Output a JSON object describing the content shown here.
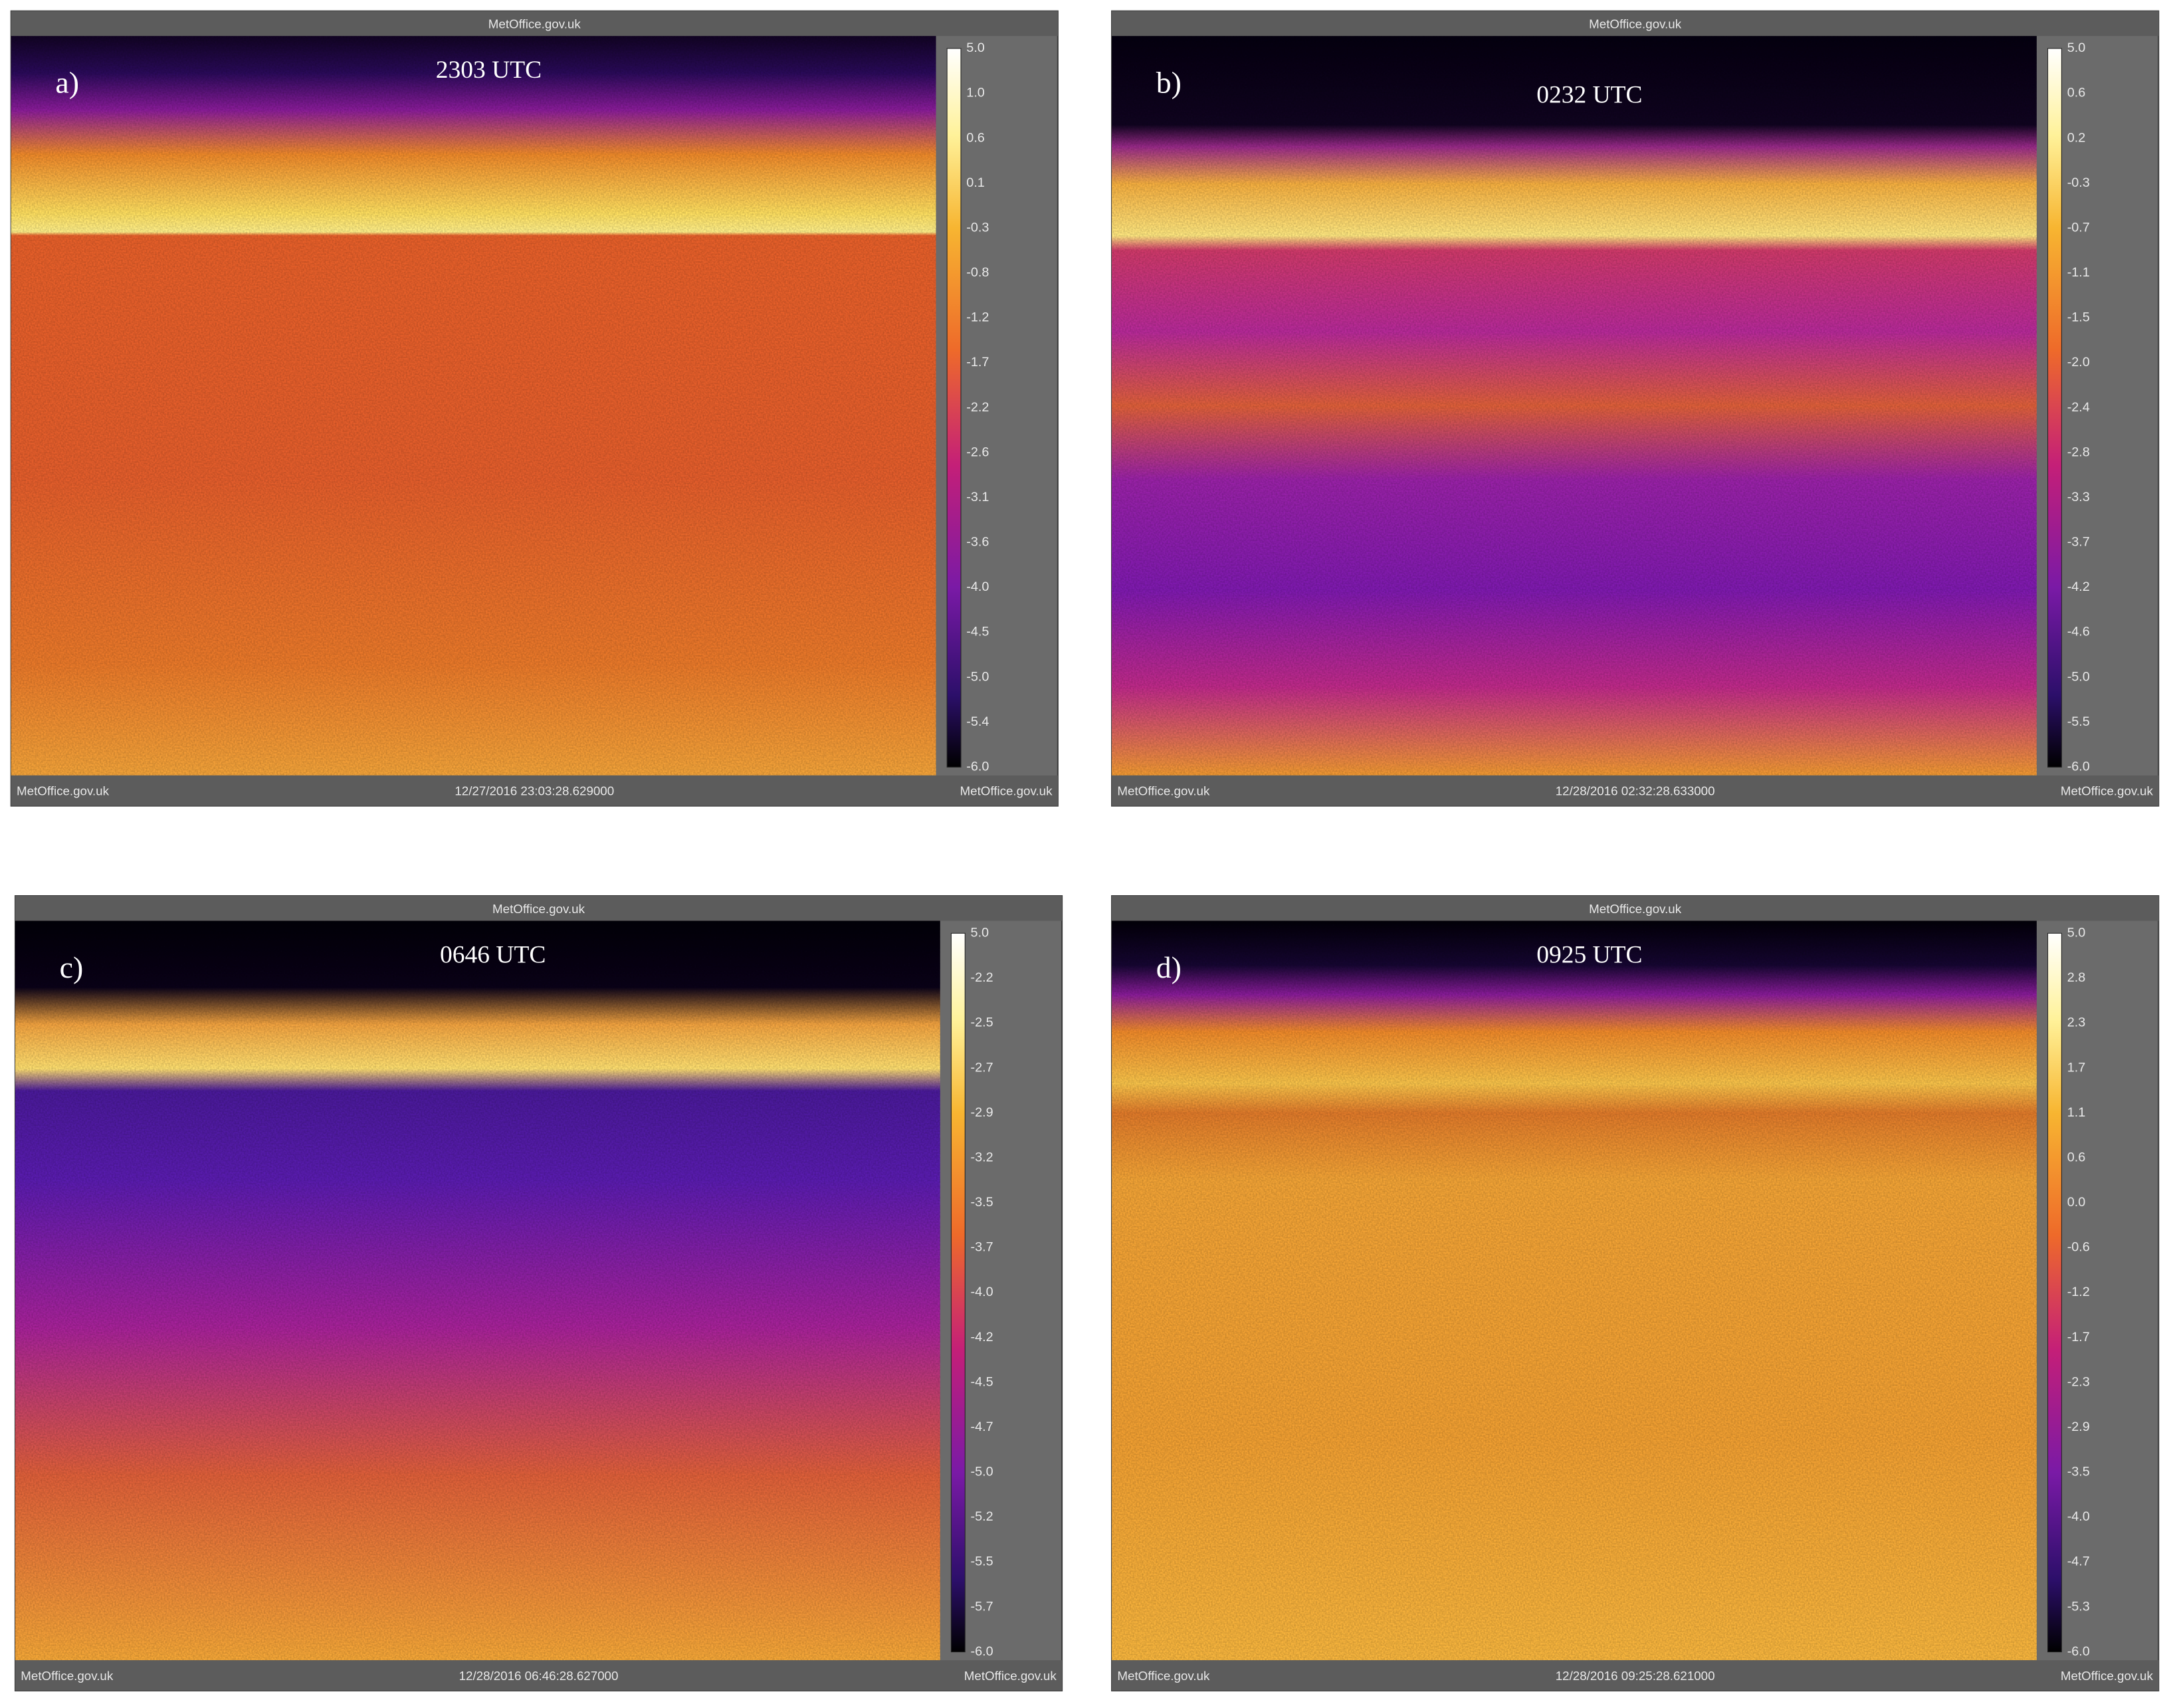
{
  "panels": [
    {
      "header": "MetOffice.gov.uk",
      "label": "a)",
      "time": "2303 UTC",
      "footer_left": "MetOffice.gov.uk",
      "timestamp": "12/27/2016 23:03:28.629000",
      "footer_right": "MetOffice.gov.uk",
      "colorbar_ticks": [
        "5.0",
        "1.0",
        "0.6",
        "0.1",
        "-0.3",
        "-0.8",
        "-1.2",
        "-1.7",
        "-2.2",
        "-2.6",
        "-3.1",
        "-3.6",
        "-4.0",
        "-4.5",
        "-5.0",
        "-5.4",
        "-6.0"
      ]
    },
    {
      "header": "MetOffice.gov.uk",
      "label": "b)",
      "time": "0232 UTC",
      "footer_left": "MetOffice.gov.uk",
      "timestamp": "12/28/2016 02:32:28.633000",
      "footer_right": "MetOffice.gov.uk",
      "colorbar_ticks": [
        "5.0",
        "0.6",
        "0.2",
        "-0.3",
        "-0.7",
        "-1.1",
        "-1.5",
        "-2.0",
        "-2.4",
        "-2.8",
        "-3.3",
        "-3.7",
        "-4.2",
        "-4.6",
        "-5.0",
        "-5.5",
        "-6.0"
      ]
    },
    {
      "header": "MetOffice.gov.uk",
      "label": "c)",
      "time": "0646 UTC",
      "footer_left": "MetOffice.gov.uk",
      "timestamp": "12/28/2016 06:46:28.627000",
      "footer_right": "MetOffice.gov.uk",
      "colorbar_ticks": [
        "5.0",
        "-2.2",
        "-2.5",
        "-2.7",
        "-2.9",
        "-3.2",
        "-3.5",
        "-3.7",
        "-4.0",
        "-4.2",
        "-4.5",
        "-4.7",
        "-5.0",
        "-5.2",
        "-5.5",
        "-5.7",
        "-6.0"
      ]
    },
    {
      "header": "MetOffice.gov.uk",
      "label": "d)",
      "time": "0925 UTC",
      "footer_left": "MetOffice.gov.uk",
      "timestamp": "12/28/2016 09:25:28.621000",
      "footer_right": "MetOffice.gov.uk",
      "colorbar_ticks": [
        "5.0",
        "2.8",
        "2.3",
        "1.7",
        "1.1",
        "0.6",
        "0.0",
        "-0.6",
        "-1.2",
        "-1.7",
        "-2.3",
        "-2.9",
        "-3.5",
        "-4.0",
        "-4.7",
        "-5.3",
        "-6.0"
      ]
    }
  ]
}
